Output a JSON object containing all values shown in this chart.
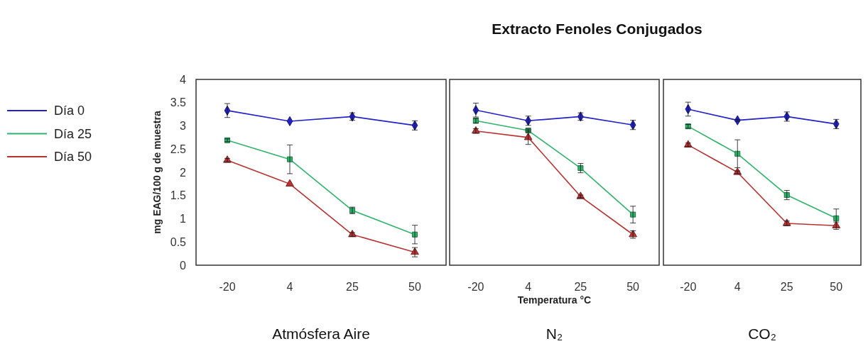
{
  "chart_data": [
    {
      "type": "line",
      "subtitle": "Atmósfera Aire",
      "ylabel": "mg EAG/100 g de muestra",
      "categories": [
        "-20",
        "4",
        "25",
        "50"
      ],
      "ylim": [
        0,
        4
      ],
      "yticks": [
        0,
        0.5,
        1,
        1.5,
        2,
        2.5,
        3,
        3.5,
        4
      ],
      "legend": "left",
      "grid": false,
      "series": [
        {
          "name": "Día 0",
          "color": "#2222c8",
          "marker": "diamond",
          "values": [
            3.33,
            3.1,
            3.2,
            3.01
          ],
          "errors": [
            0.15,
            null,
            0.08,
            0.1
          ]
        },
        {
          "name": "Día 25",
          "color": "#2fb36a",
          "marker": "square",
          "values": [
            2.69,
            2.28,
            1.18,
            0.66
          ],
          "errors": [
            0.03,
            0.31,
            0.07,
            0.2
          ]
        },
        {
          "name": "Día 50",
          "color": "#b83232",
          "marker": "triangle",
          "values": [
            2.26,
            1.75,
            0.66,
            0.28
          ],
          "errors": [
            0.04,
            null,
            0.04,
            0.1
          ]
        }
      ]
    },
    {
      "type": "line",
      "title": "Extracto Fenoles Conjugados",
      "subtitle": "N₂",
      "xlabel": "Temperatura °C",
      "categories": [
        "-20",
        "4",
        "25",
        "50"
      ],
      "ylim": [
        0,
        4
      ],
      "tick_labels": "x",
      "grid": false,
      "series": [
        {
          "color": "#2222c8",
          "marker": "diamond",
          "values": [
            3.34,
            3.11,
            3.2,
            3.02
          ],
          "errors": [
            0.15,
            0.1,
            0.08,
            0.1
          ]
        },
        {
          "color": "#2fb36a",
          "marker": "square",
          "values": [
            3.11,
            2.9,
            2.09,
            1.09
          ],
          "errors": [
            0.05,
            0.03,
            0.1,
            0.18
          ]
        },
        {
          "color": "#b83232",
          "marker": "triangle",
          "values": [
            2.89,
            2.75,
            1.48,
            0.66
          ],
          "errors": [
            0.05,
            0.15,
            0.03,
            0.08
          ]
        }
      ]
    },
    {
      "type": "line",
      "subtitle": "CO₂",
      "categories": [
        "-20",
        "4",
        "25",
        "50"
      ],
      "ylim": [
        0,
        4
      ],
      "tick_labels": "x",
      "grid": false,
      "series": [
        {
          "color": "#2222c8",
          "marker": "diamond",
          "values": [
            3.36,
            3.12,
            3.2,
            3.04
          ],
          "errors": [
            0.15,
            0.02,
            0.1,
            0.1
          ]
        },
        {
          "color": "#2fb36a",
          "marker": "square",
          "values": [
            2.99,
            2.4,
            1.51,
            1.01
          ],
          "errors": [
            0.04,
            0.3,
            0.1,
            0.2
          ]
        },
        {
          "color": "#b83232",
          "marker": "triangle",
          "values": [
            2.59,
            2.0,
            0.9,
            0.85
          ],
          "errors": [
            0.04,
            0.03,
            0.05,
            0.08
          ]
        }
      ]
    }
  ]
}
